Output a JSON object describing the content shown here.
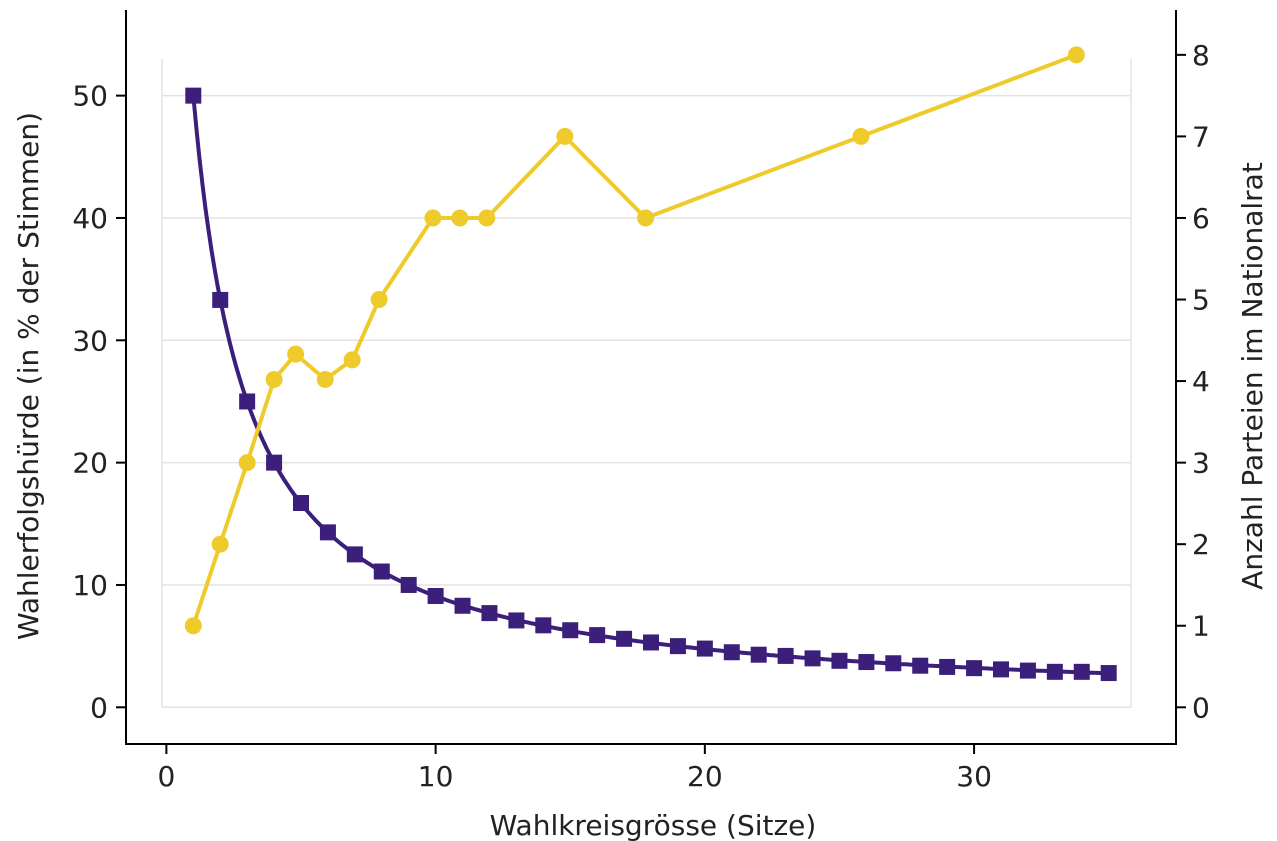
{
  "chart_data": {
    "type": "line",
    "title": "",
    "xlabel": "Wahlkreisgrösse (Sitze)",
    "ylabel": "Wahlerfolgshürde (in % der Stimmen)",
    "y2label": "Anzahl Parteien im Nationalrat",
    "xlim": [
      -1.5,
      37.5
    ],
    "ylim": [
      -3,
      57
    ],
    "y2lim": [
      -0.45,
      8.55
    ],
    "xticks": [
      0,
      10,
      20,
      30
    ],
    "yticks": [
      0,
      10,
      20,
      30,
      40,
      50
    ],
    "y2ticks": [
      0,
      1,
      2,
      3,
      4,
      5,
      6,
      7,
      8
    ],
    "grid": true,
    "series": [
      {
        "axis": "left",
        "marker": "square",
        "color": "#3b1f7a",
        "smooth": true,
        "x": [
          1,
          2,
          3,
          4,
          5,
          6,
          7,
          8,
          9,
          10,
          11,
          12,
          13,
          14,
          15,
          16,
          17,
          18,
          19,
          20,
          21,
          22,
          23,
          24,
          25,
          26,
          27,
          28,
          29,
          30,
          31,
          32,
          33,
          34,
          35
        ],
        "y": [
          50.0,
          33.3,
          25.0,
          20.0,
          16.7,
          14.3,
          12.5,
          11.1,
          10.0,
          9.1,
          8.3,
          7.7,
          7.1,
          6.7,
          6.3,
          5.9,
          5.6,
          5.3,
          5.0,
          4.8,
          4.5,
          4.3,
          4.2,
          4.0,
          3.8,
          3.7,
          3.6,
          3.4,
          3.3,
          3.2,
          3.1,
          3.0,
          2.9,
          2.9,
          2.8
        ]
      },
      {
        "axis": "right",
        "marker": "circle",
        "color": "#eecb2b",
        "x": [
          1,
          2,
          3,
          4,
          4.8,
          5.9,
          6.9,
          7.9,
          9.9,
          10.9,
          11.9,
          14.8,
          17.8,
          25.8,
          33.8
        ],
        "y": [
          1,
          2,
          3,
          4.02,
          4.33,
          4.02,
          4.26,
          5,
          6,
          6,
          6,
          7,
          6,
          7,
          8
        ]
      }
    ]
  }
}
